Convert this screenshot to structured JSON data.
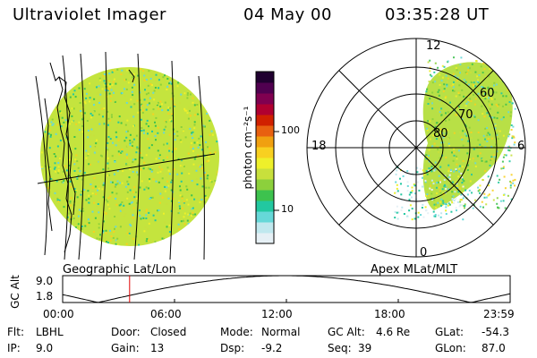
{
  "header": {
    "instrument": "Ultraviolet Imager",
    "date": "04 May 00",
    "time": "03:35:28 UT"
  },
  "geo_panel": {
    "label": "Geographic Lat/Lon"
  },
  "apex_panel": {
    "label": "Apex MLat/MLT",
    "mlt_labels": {
      "top": "12",
      "left": "18",
      "right": "6",
      "bottom": "0"
    },
    "lat_labels": [
      "60",
      "70",
      "80"
    ]
  },
  "colorbar": {
    "unit_label": "photon cm⁻²s⁻¹",
    "ticks": [
      {
        "label": "100",
        "value": 100
      },
      {
        "label": "10",
        "value": 10
      }
    ],
    "colors": [
      "#e6f0f5",
      "#c0e8ee",
      "#66d8d8",
      "#22c8a0",
      "#3dc24e",
      "#8cd03c",
      "#c8e03c",
      "#eef02a",
      "#f8d020",
      "#f0a010",
      "#e86010",
      "#d02000",
      "#b00030",
      "#800050",
      "#500050",
      "#200030"
    ]
  },
  "gc_alt_plot": {
    "axis_label": "GC Alt",
    "y_ticks": [
      "9.0",
      "1.8"
    ],
    "y_min": 1.8,
    "y_max": 9.0,
    "x_ticks": [
      "00:00",
      "06:00",
      "12:00",
      "18:00",
      "23:59"
    ],
    "current_time_hours": 3.59,
    "line_color": "#000000",
    "marker_color": "#e00000"
  },
  "info_rows": [
    [
      {
        "key": "Flt:",
        "value": "LBHL"
      },
      {
        "key": "Door:",
        "value": "Closed"
      },
      {
        "key": "Mode:",
        "value": "Normal"
      },
      {
        "key": "GC Alt:",
        "value": "4.6 Re"
      },
      {
        "key": "GLat:",
        "value": "-54.3"
      }
    ],
    [
      {
        "key": "IP:",
        "value": "9.0"
      },
      {
        "key": "Gain:",
        "value": "13"
      },
      {
        "key": "Dsp:",
        "value": "-9.2"
      },
      {
        "key": "Seq:",
        "value": "39"
      },
      {
        "key": "GLon:",
        "value": "87.0"
      }
    ]
  ]
}
